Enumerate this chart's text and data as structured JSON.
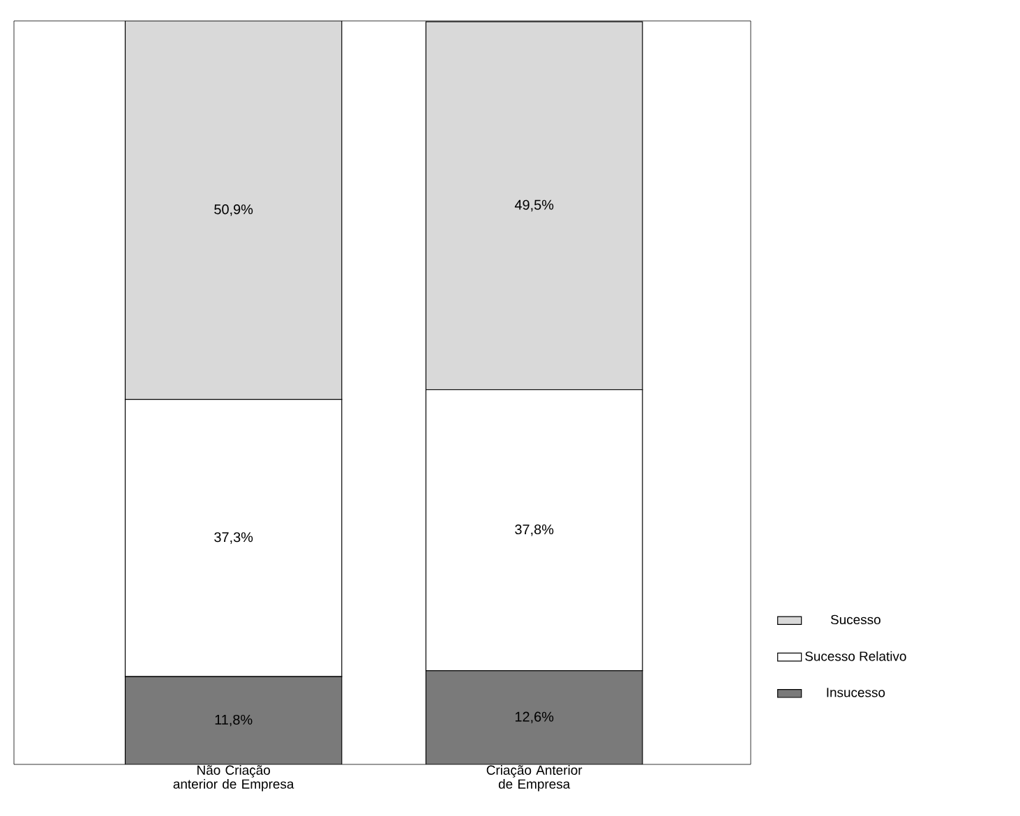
{
  "chart_data": {
    "type": "bar",
    "stacked": true,
    "categories": [
      "Não Criação anterior de Empresa",
      "Criação Anterior de Empresa"
    ],
    "series": [
      {
        "name": "Insucesso",
        "color": "#7a7a7a",
        "values": [
          11.8,
          12.6
        ],
        "value_labels": [
          "11,8%",
          "12,6%"
        ]
      },
      {
        "name": "Sucesso Relativo",
        "color": "#ffffff",
        "values": [
          37.3,
          37.8
        ],
        "value_labels": [
          "37,3%",
          "37,8%"
        ]
      },
      {
        "name": "Sucesso",
        "color": "#d9d9d9",
        "values": [
          50.9,
          49.5
        ],
        "value_labels": [
          "50,9%",
          "49,5%"
        ]
      }
    ],
    "ylim": [
      0,
      100
    ],
    "tick_labels": "x",
    "legend": "right",
    "grid": false
  }
}
